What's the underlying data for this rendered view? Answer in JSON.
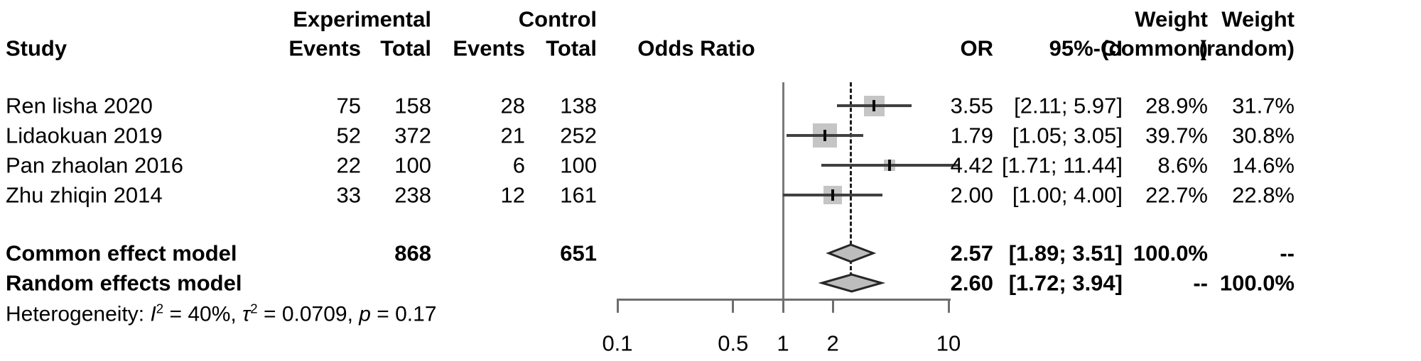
{
  "header": {
    "study": "Study",
    "experimental": "Experimental",
    "control": "Control",
    "events": "Events",
    "total": "Total",
    "odds_ratio": "Odds Ratio",
    "or": "OR",
    "ci": "95%-CI",
    "weight": "Weight",
    "weight_common_sub": "(common)",
    "weight_random_sub": "(random)"
  },
  "chart_data": {
    "type": "forest",
    "effect_measure": "Odds Ratio",
    "x_scale": "log10",
    "xlim": [
      0.1,
      10
    ],
    "axis_ticks": [
      "0.1",
      "0.5",
      "1",
      "2",
      "10"
    ],
    "axis_tick_values": [
      0.1,
      0.5,
      1,
      2,
      10
    ],
    "reference_line": 1,
    "dashed_line_at": 2.57,
    "studies": [
      {
        "name": "Ren lisha 2020",
        "exp_events": "75",
        "exp_total": "158",
        "ctrl_events": "28",
        "ctrl_total": "138",
        "or": 3.55,
        "ci_low": 2.11,
        "ci_high": 5.97,
        "or_text": "3.55",
        "ci_text": "[2.11; 5.97]",
        "weight_common": 28.9,
        "weight_random": 31.7,
        "weight_common_text": "28.9%",
        "weight_random_text": "31.7%"
      },
      {
        "name": "Lidaokuan 2019",
        "exp_events": "52",
        "exp_total": "372",
        "ctrl_events": "21",
        "ctrl_total": "252",
        "or": 1.79,
        "ci_low": 1.05,
        "ci_high": 3.05,
        "or_text": "1.79",
        "ci_text": "[1.05; 3.05]",
        "weight_common": 39.7,
        "weight_random": 30.8,
        "weight_common_text": "39.7%",
        "weight_random_text": "30.8%"
      },
      {
        "name": "Pan zhaolan 2016",
        "exp_events": "22",
        "exp_total": "100",
        "ctrl_events": "6",
        "ctrl_total": "100",
        "or": 4.42,
        "ci_low": 1.71,
        "ci_high": 11.44,
        "or_text": "4.42",
        "ci_text": "[1.71; 11.44]",
        "weight_common": 8.6,
        "weight_random": 14.6,
        "weight_common_text": "8.6%",
        "weight_random_text": "14.6%"
      },
      {
        "name": "Zhu zhiqin 2014",
        "exp_events": "33",
        "exp_total": "238",
        "ctrl_events": "12",
        "ctrl_total": "161",
        "or": 2.0,
        "ci_low": 1.0,
        "ci_high": 4.0,
        "or_text": "2.00",
        "ci_text": "[1.00; 4.00]",
        "weight_common": 22.7,
        "weight_random": 22.8,
        "weight_common_text": "22.7%",
        "weight_random_text": "22.8%"
      }
    ],
    "pooled": [
      {
        "name": "Common effect model",
        "exp_total": "868",
        "ctrl_total": "651",
        "or": 2.57,
        "ci_low": 1.89,
        "ci_high": 3.51,
        "or_text": "2.57",
        "ci_text": "[1.89; 3.51]",
        "weight_common_text": "100.0%",
        "weight_random_text": "--"
      },
      {
        "name": "Random effects model",
        "exp_total": "",
        "ctrl_total": "",
        "or": 2.6,
        "ci_low": 1.72,
        "ci_high": 3.94,
        "or_text": "2.60",
        "ci_text": "[1.72; 3.94]",
        "weight_common_text": "--",
        "weight_random_text": "100.0%"
      }
    ],
    "heterogeneity": {
      "prefix": "Heterogeneity: ",
      "i_sym": "I",
      "i_sup": "2",
      "i_rest": " = 40%, ",
      "tau_sym": "τ",
      "tau_sup": "2",
      "tau_rest": " = 0.0709, ",
      "p_sym": "p",
      "p_rest": " = 0.17"
    }
  },
  "colors": {
    "text": "#000000",
    "ci_line": "#404040",
    "square_fill": "#c5c5c5",
    "point_mark": "#0a0a0a",
    "diamond_fill": "#bdbdbd",
    "diamond_stroke": "#262626",
    "axis": "#6e6e6e",
    "reference_line": "#7a7a7a",
    "dashed_line": "#1c1c1c"
  }
}
